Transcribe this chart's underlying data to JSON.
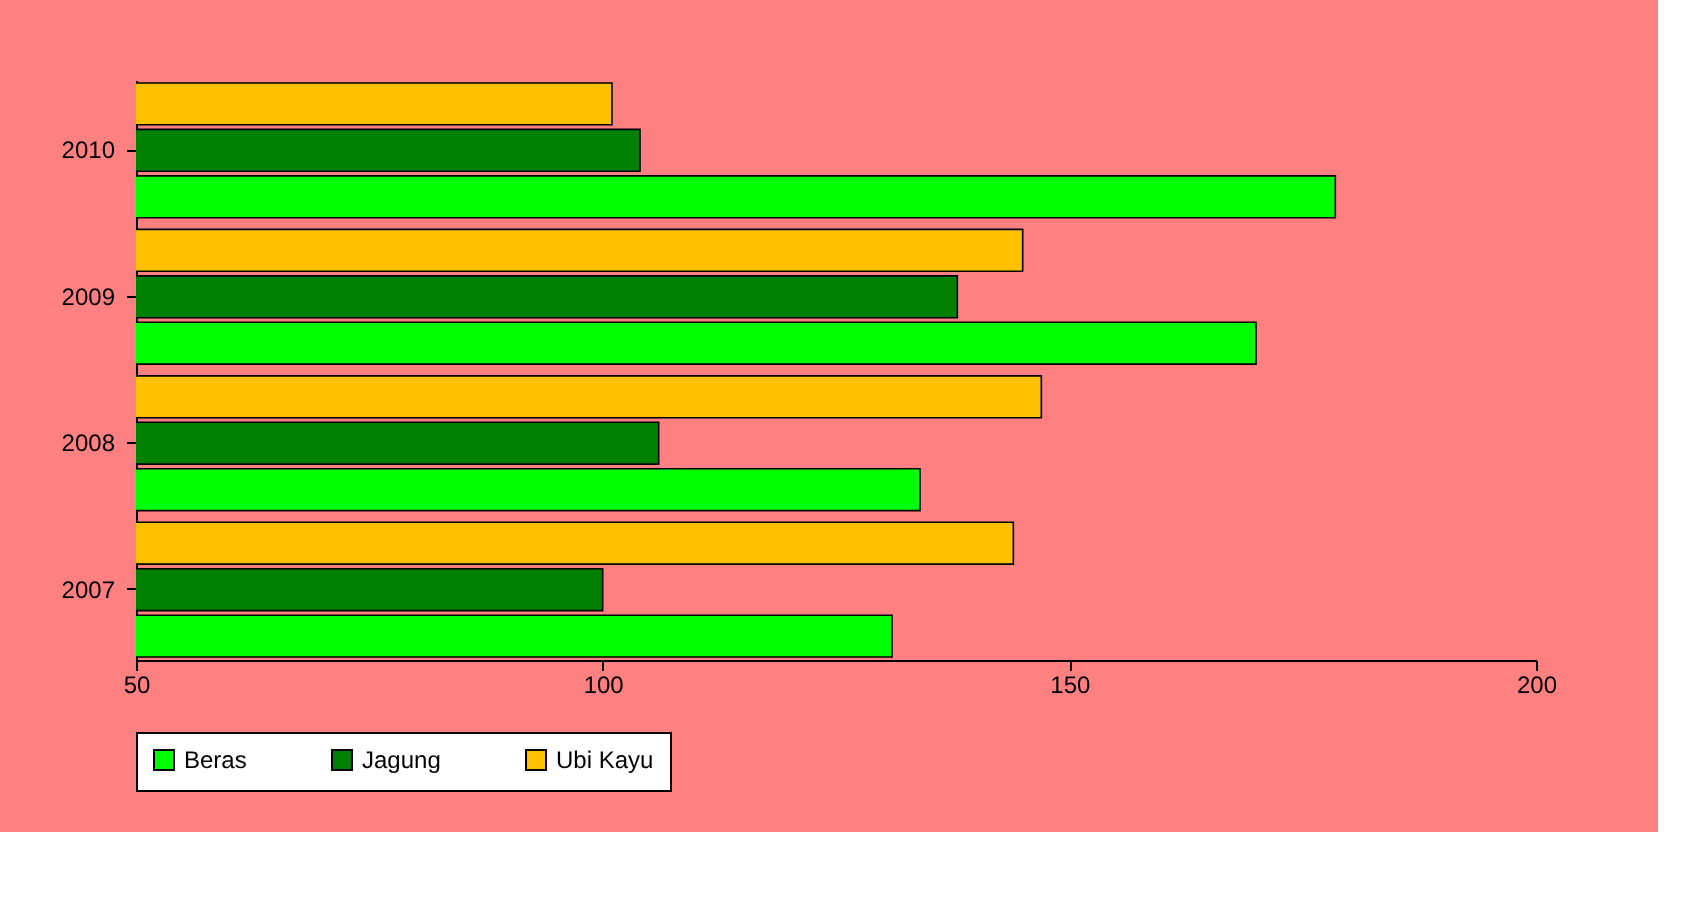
{
  "chart_data": {
    "type": "bar",
    "orientation": "horizontal",
    "categories": [
      "2010",
      "2009",
      "2008",
      "2007"
    ],
    "series": [
      {
        "name": "Beras",
        "color": "#00ff00",
        "values": [
          178.5,
          170,
          134,
          131
        ]
      },
      {
        "name": "Jagung",
        "color": "#008000",
        "values": [
          104,
          138,
          106,
          100
        ]
      },
      {
        "name": "Ubi Kayu",
        "color": "#ffc000",
        "values": [
          101,
          145,
          147,
          144
        ]
      }
    ],
    "xlim": [
      50,
      200
    ],
    "xticks": [
      50,
      100,
      150,
      200
    ],
    "grid": false,
    "legend": "bottom"
  }
}
